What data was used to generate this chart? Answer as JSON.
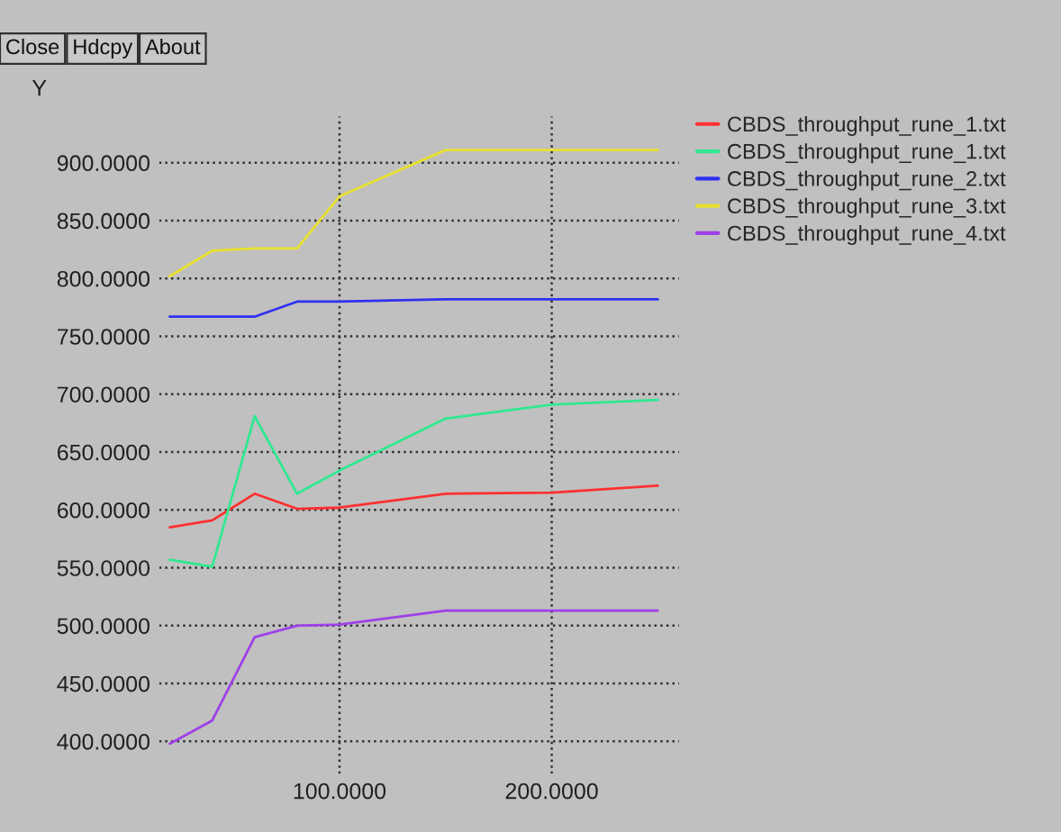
{
  "chart_data": {
    "type": "line",
    "ylabel": "Y",
    "annotations": [
      "Close",
      "Hdcpy",
      "About"
    ],
    "x": [
      20,
      40,
      60,
      80,
      100,
      150,
      200,
      250
    ],
    "series": [
      {
        "name": "CBDS_throughput_rune_1.txt",
        "color": "#ff3030",
        "values": [
          585,
          591,
          614,
          601,
          602,
          614,
          615,
          621
        ]
      },
      {
        "name": "CBDS_throughput_rune_1.txt",
        "color": "#30e890",
        "values": [
          557,
          551,
          681,
          614,
          634,
          679,
          691,
          695
        ]
      },
      {
        "name": "CBDS_throughput_rune_2.txt",
        "color": "#3030f0",
        "values": [
          767,
          767,
          767,
          780,
          780,
          782,
          782,
          782
        ]
      },
      {
        "name": "CBDS_throughput_rune_3.txt",
        "color": "#e8e030",
        "values": [
          802,
          824,
          826,
          826,
          871,
          911,
          911,
          911
        ]
      },
      {
        "name": "CBDS_throughput_rune_4.txt",
        "color": "#a040e8",
        "values": [
          398,
          418,
          490,
          500,
          501,
          513,
          513,
          513
        ]
      }
    ],
    "xlim": [
      15,
      260
    ],
    "ylim": [
      372,
      940
    ],
    "xticks": [
      {
        "value": 100,
        "label": "100.0000"
      },
      {
        "value": 200,
        "label": "200.0000"
      }
    ],
    "yticks": [
      {
        "value": 400,
        "label": "400.0000"
      },
      {
        "value": 450,
        "label": "450.0000"
      },
      {
        "value": 500,
        "label": "500.0000"
      },
      {
        "value": 550,
        "label": "550.0000"
      },
      {
        "value": 600,
        "label": "600.0000"
      },
      {
        "value": 650,
        "label": "650.0000"
      },
      {
        "value": 700,
        "label": "700.0000"
      },
      {
        "value": 750,
        "label": "750.0000"
      },
      {
        "value": 800,
        "label": "800.0000"
      },
      {
        "value": 850,
        "label": "850.0000"
      },
      {
        "value": 900,
        "label": "900.0000"
      }
    ],
    "grid": true,
    "legend": "top right",
    "line_style": "solid",
    "marker": "none"
  }
}
